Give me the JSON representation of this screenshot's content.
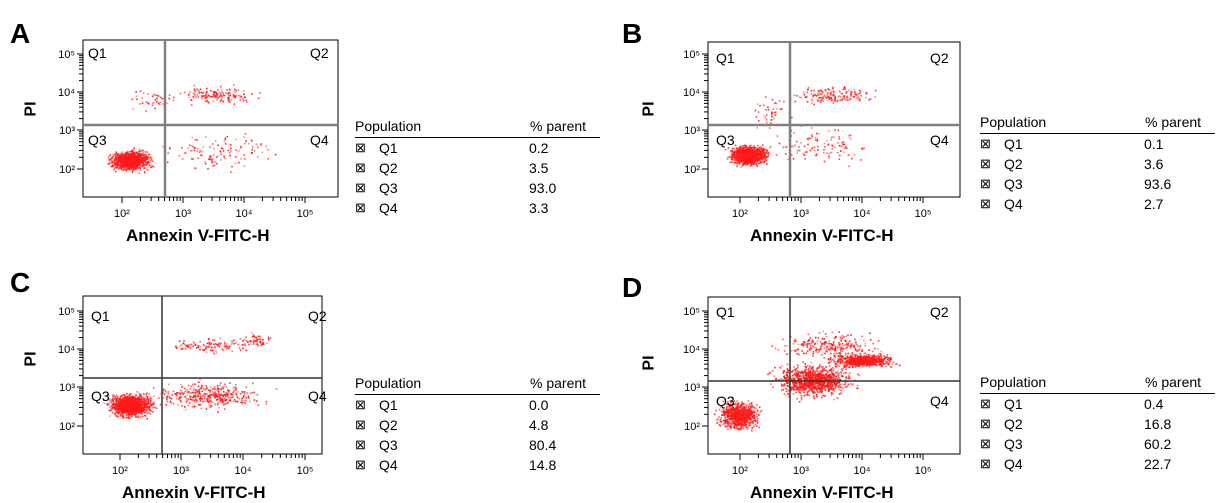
{
  "chart_data": [
    {
      "type": "scatter",
      "panel": "A",
      "xlabel": "Annexin V-FITC-H",
      "ylabel": "PI",
      "x_ticks": [
        "10²",
        "10³",
        "10⁴",
        "10⁵"
      ],
      "y_ticks": [
        "10²",
        "10³",
        "10⁴",
        "10⁵"
      ],
      "quadrants": [
        "Q1",
        "Q2",
        "Q3",
        "Q4"
      ],
      "legend": {
        "header_population": "Population",
        "header_value": "% parent",
        "rows": [
          {
            "name": "Q1",
            "value": "0.2"
          },
          {
            "name": "Q2",
            "value": "3.5"
          },
          {
            "name": "Q3",
            "value": "93.0"
          },
          {
            "name": "Q4",
            "value": "3.3"
          }
        ]
      }
    },
    {
      "type": "scatter",
      "panel": "B",
      "xlabel": "Annexin V-FITC-H",
      "ylabel": "PI",
      "x_ticks": [
        "10²",
        "10³",
        "10⁴",
        "10⁵"
      ],
      "y_ticks": [
        "10²",
        "10³",
        "10⁴",
        "10⁵"
      ],
      "quadrants": [
        "Q1",
        "Q2",
        "Q3",
        "Q4"
      ],
      "legend": {
        "header_population": "Population",
        "header_value": "% parent",
        "rows": [
          {
            "name": "Q1",
            "value": "0.1"
          },
          {
            "name": "Q2",
            "value": "3.6"
          },
          {
            "name": "Q3",
            "value": "93.6"
          },
          {
            "name": "Q4",
            "value": "2.7"
          }
        ]
      }
    },
    {
      "type": "scatter",
      "panel": "C",
      "xlabel": "Annexin V-FITC-H",
      "ylabel": "PI",
      "x_ticks": [
        "10²",
        "10³",
        "10⁴",
        "10⁵"
      ],
      "y_ticks": [
        "10²",
        "10³",
        "10⁴",
        "10⁵"
      ],
      "quadrants": [
        "Q1",
        "Q2",
        "Q3",
        "Q4"
      ],
      "legend": {
        "header_population": "Population",
        "header_value": "% parent",
        "rows": [
          {
            "name": "Q1",
            "value": "0.0"
          },
          {
            "name": "Q2",
            "value": "4.8"
          },
          {
            "name": "Q3",
            "value": "80.4"
          },
          {
            "name": "Q4",
            "value": "14.8"
          }
        ]
      }
    },
    {
      "type": "scatter",
      "panel": "D",
      "xlabel": "Annexin V-FITC-H",
      "ylabel": "PI",
      "x_ticks": [
        "10²",
        "10³",
        "10⁴",
        "10⁵"
      ],
      "y_ticks": [
        "10²",
        "10³",
        "10⁴",
        "10⁵"
      ],
      "quadrants": [
        "Q1",
        "Q2",
        "Q3",
        "Q4"
      ],
      "legend": {
        "header_population": "Population",
        "header_value": "% parent",
        "rows": [
          {
            "name": "Q1",
            "value": "0.4"
          },
          {
            "name": "Q2",
            "value": "16.8"
          },
          {
            "name": "Q3",
            "value": "60.2"
          },
          {
            "name": "Q4",
            "value": "22.7"
          }
        ]
      }
    }
  ],
  "colors": {
    "points": "#ff1a1a",
    "gate": "#808080",
    "gate_dark": "#333333"
  },
  "legend_icon": "checkbox-cross-icon",
  "legend_symbol": "⊠"
}
